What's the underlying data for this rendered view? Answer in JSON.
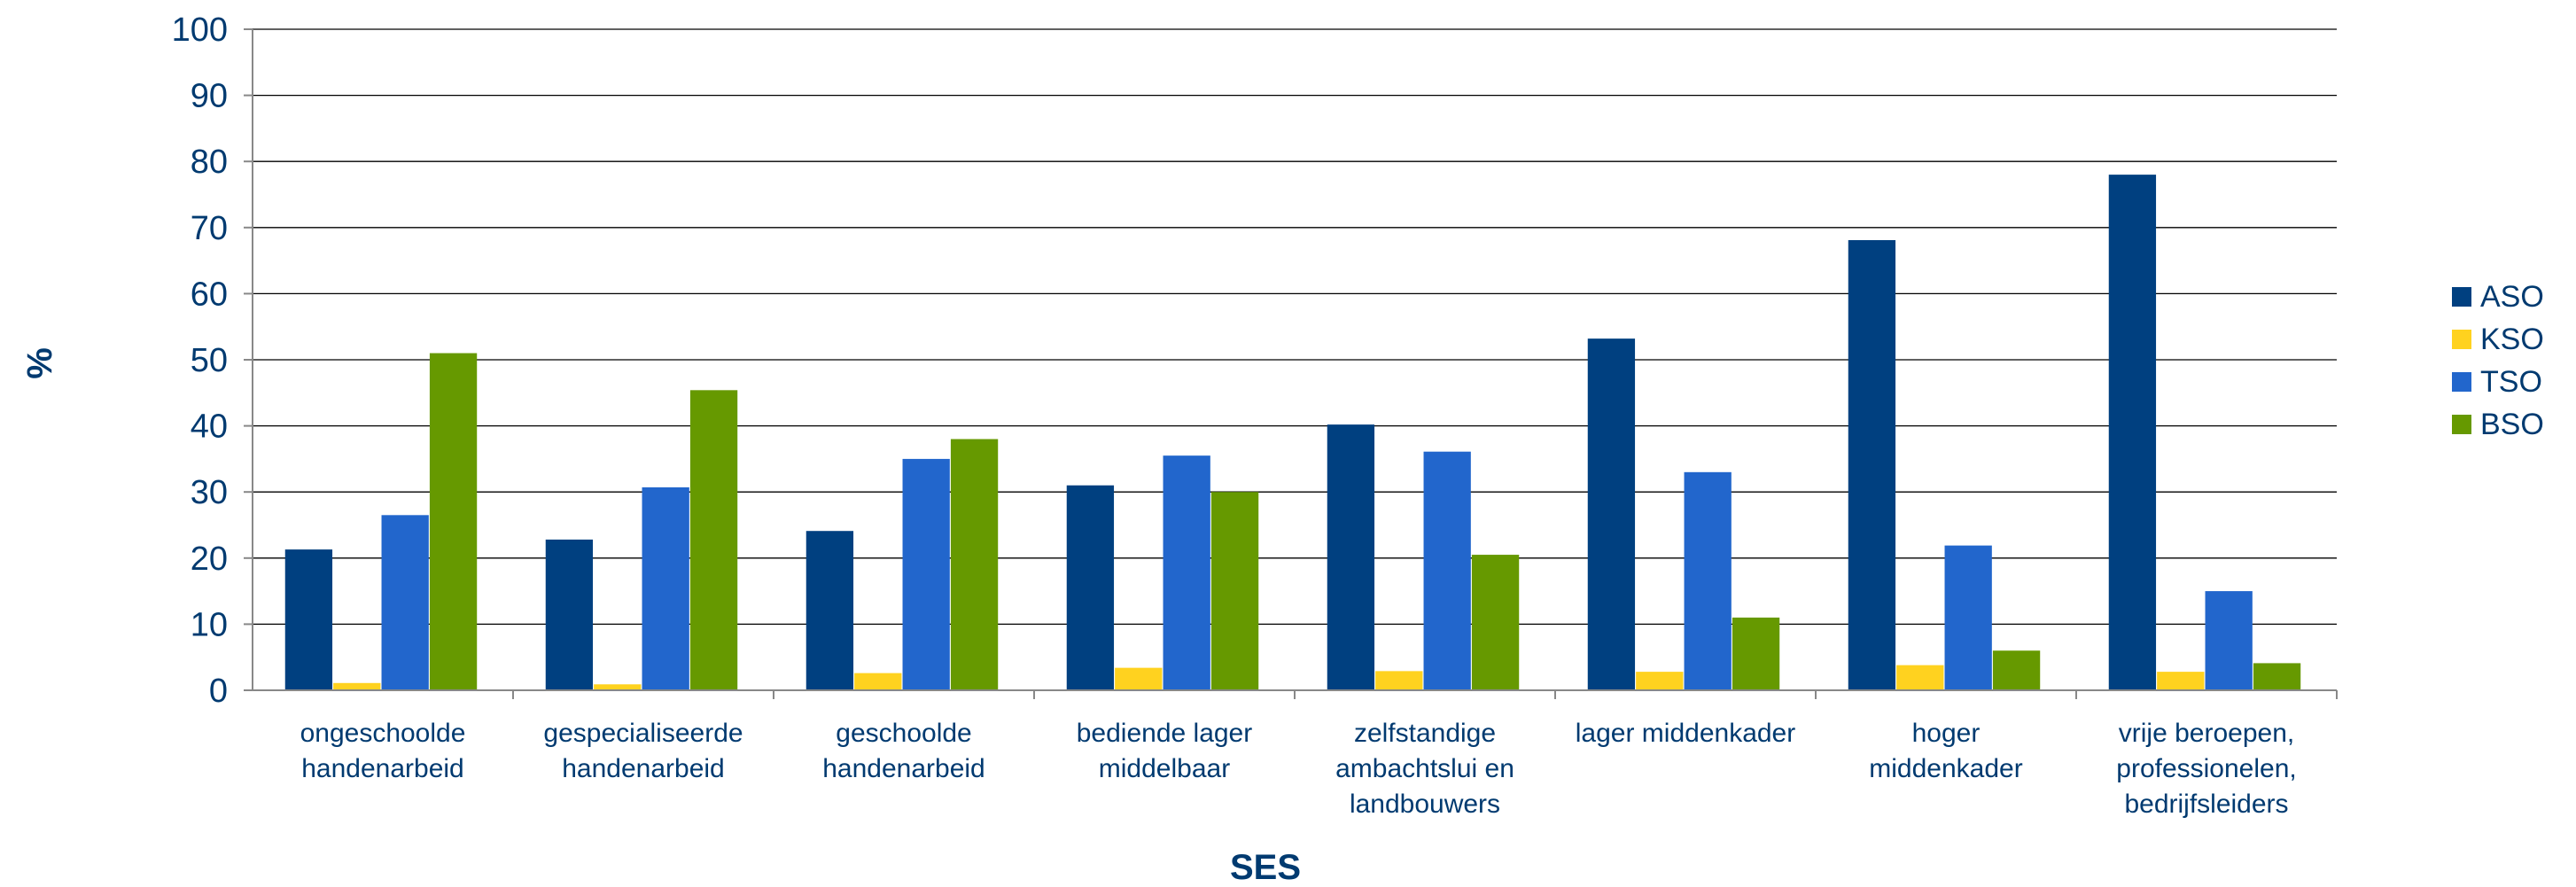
{
  "chart_data": {
    "type": "bar",
    "title": "",
    "xlabel": "SES",
    "ylabel": "%",
    "ylim": [
      0,
      100
    ],
    "yticks": [
      0,
      10,
      20,
      30,
      40,
      50,
      60,
      70,
      80,
      90,
      100
    ],
    "grid": true,
    "legend_position": "right",
    "categories": [
      [
        "ongeschoolde",
        "handenarbeid"
      ],
      [
        "gespecialiseerde",
        "handenarbeid"
      ],
      [
        "geschoolde",
        "handenarbeid"
      ],
      [
        "bediende lager",
        "middelbaar"
      ],
      [
        "zelfstandige",
        "ambachtslui en",
        "landbouwers"
      ],
      [
        "lager middenkader"
      ],
      [
        "hoger",
        "middenkader"
      ],
      [
        "vrije beroepen,",
        "professionelen,",
        "bedrijfsleiders"
      ]
    ],
    "series": [
      {
        "name": "ASO",
        "color": "#004080",
        "values": [
          21.3,
          22.8,
          24.1,
          31.0,
          40.2,
          53.2,
          68.1,
          78.0
        ]
      },
      {
        "name": "KSO",
        "color": "#ffd21f",
        "values": [
          1.1,
          0.9,
          2.6,
          3.4,
          2.9,
          2.8,
          3.8,
          2.8
        ]
      },
      {
        "name": "TSO",
        "color": "#2266cc",
        "values": [
          26.5,
          30.7,
          35.0,
          35.5,
          36.1,
          33.0,
          21.9,
          15.0
        ]
      },
      {
        "name": "BSO",
        "color": "#669900",
        "values": [
          51.0,
          45.4,
          38.0,
          30.0,
          20.5,
          11.0,
          6.0,
          4.1
        ]
      }
    ]
  }
}
